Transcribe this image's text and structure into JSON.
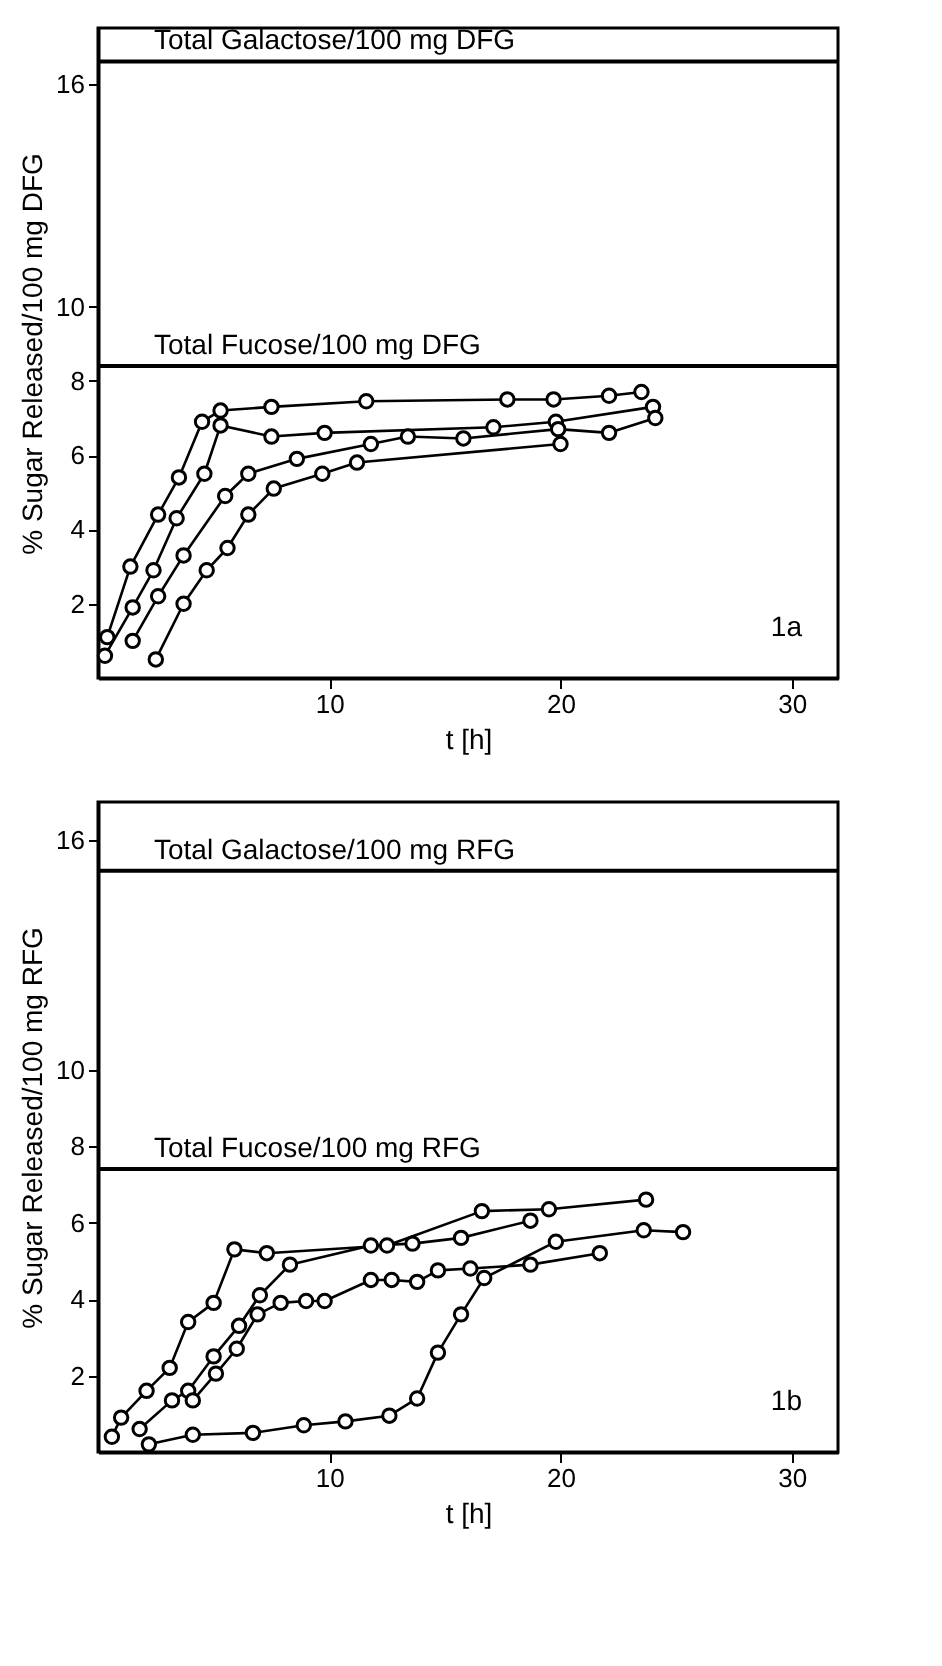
{
  "chart_data": [
    {
      "type": "line",
      "xlabel": "t [h]",
      "ylabel": "% Sugar Released/100 mg DFG",
      "xlim": [
        0,
        32
      ],
      "ylim": [
        0,
        17.5
      ],
      "xticks": [
        10,
        20,
        30
      ],
      "yticks": [
        2,
        4,
        6,
        8,
        10,
        16
      ],
      "grid": false,
      "legend": false,
      "marker": "circle",
      "line_style": "solid",
      "annotations": [
        "1a"
      ],
      "ref_lines": [
        {
          "axis": "y",
          "value": 16.6,
          "label": "Total Galactose/100 mg DFG"
        },
        {
          "axis": "y",
          "value": 8.4,
          "label": "Total Fucose/100 mg DFG"
        }
      ],
      "series": [
        {
          "color": "#000000",
          "x": [
            0.4,
            1.4,
            2.6,
            3.5,
            4.5,
            5.3,
            7.5,
            11.6,
            17.7,
            19.7,
            22.1,
            23.5
          ],
          "values": [
            1.1,
            3.0,
            4.4,
            5.4,
            6.9,
            7.2,
            7.3,
            7.45,
            7.5,
            7.5,
            7.6,
            7.7
          ]
        },
        {
          "color": "#000000",
          "x": [
            0.3,
            1.5,
            2.4,
            3.4,
            4.6,
            5.3,
            7.5,
            9.8,
            17.1,
            19.8,
            24.0
          ],
          "values": [
            0.6,
            1.9,
            2.9,
            4.3,
            5.5,
            6.8,
            6.5,
            6.6,
            6.75,
            6.9,
            7.3
          ]
        },
        {
          "color": "#000000",
          "x": [
            1.5,
            2.6,
            3.7,
            5.5,
            6.5,
            8.6,
            11.8,
            13.4,
            15.8,
            19.9,
            22.1,
            24.1
          ],
          "values": [
            1.0,
            2.2,
            3.3,
            4.9,
            5.5,
            5.9,
            6.3,
            6.5,
            6.45,
            6.7,
            6.6,
            7.0
          ]
        },
        {
          "color": "#000000",
          "x": [
            2.5,
            3.7,
            4.7,
            5.6,
            6.5,
            7.6,
            9.7,
            11.2,
            20.0
          ],
          "values": [
            0.5,
            2.0,
            2.9,
            3.5,
            4.4,
            5.1,
            5.5,
            5.8,
            6.3
          ]
        }
      ]
    },
    {
      "type": "line",
      "xlabel": "t [h]",
      "ylabel": "% Sugar Released/100 mg RFG",
      "xlim": [
        0,
        32
      ],
      "ylim": [
        0,
        17
      ],
      "xticks": [
        10,
        20,
        30
      ],
      "yticks": [
        2,
        4,
        6,
        8,
        10,
        16
      ],
      "grid": false,
      "legend": false,
      "marker": "circle",
      "line_style": "solid",
      "annotations": [
        "1b"
      ],
      "ref_lines": [
        {
          "axis": "y",
          "value": 15.2,
          "label": "Total Galactose/100 mg RFG"
        },
        {
          "axis": "y",
          "value": 7.4,
          "label": "Total Fucose/100 mg RFG"
        }
      ],
      "series": [
        {
          "color": "#000000",
          "x": [
            0.6,
            1.0,
            2.1,
            3.1,
            3.9,
            5.0,
            5.9,
            7.3,
            12.5,
            16.6,
            19.5,
            23.7
          ],
          "values": [
            0.4,
            0.9,
            1.6,
            2.2,
            3.4,
            3.9,
            5.3,
            5.2,
            5.4,
            6.3,
            6.35,
            6.6
          ]
        },
        {
          "color": "#000000",
          "x": [
            1.8,
            3.2,
            3.9,
            5.0,
            6.1,
            7.0,
            8.3,
            11.8,
            13.6,
            15.7,
            18.7
          ],
          "values": [
            0.6,
            1.35,
            1.6,
            2.5,
            3.3,
            4.1,
            4.9,
            5.4,
            5.45,
            5.6,
            6.05
          ]
        },
        {
          "color": "#000000",
          "x": [
            4.1,
            5.1,
            6.0,
            6.9,
            7.9,
            9.0,
            9.8,
            11.8,
            12.7,
            13.8,
            14.7,
            16.1,
            18.7,
            21.7
          ],
          "values": [
            1.35,
            2.05,
            2.7,
            3.6,
            3.9,
            3.95,
            3.95,
            4.5,
            4.5,
            4.45,
            4.75,
            4.8,
            4.9,
            5.2
          ]
        },
        {
          "color": "#000000",
          "x": [
            2.2,
            4.1,
            6.7,
            8.9,
            10.7,
            12.6,
            13.8,
            14.7,
            15.7,
            16.7,
            19.8,
            23.6,
            25.3
          ],
          "values": [
            0.2,
            0.45,
            0.5,
            0.7,
            0.8,
            0.95,
            1.4,
            2.6,
            3.6,
            4.55,
            5.5,
            5.8,
            5.75
          ]
        }
      ]
    }
  ]
}
